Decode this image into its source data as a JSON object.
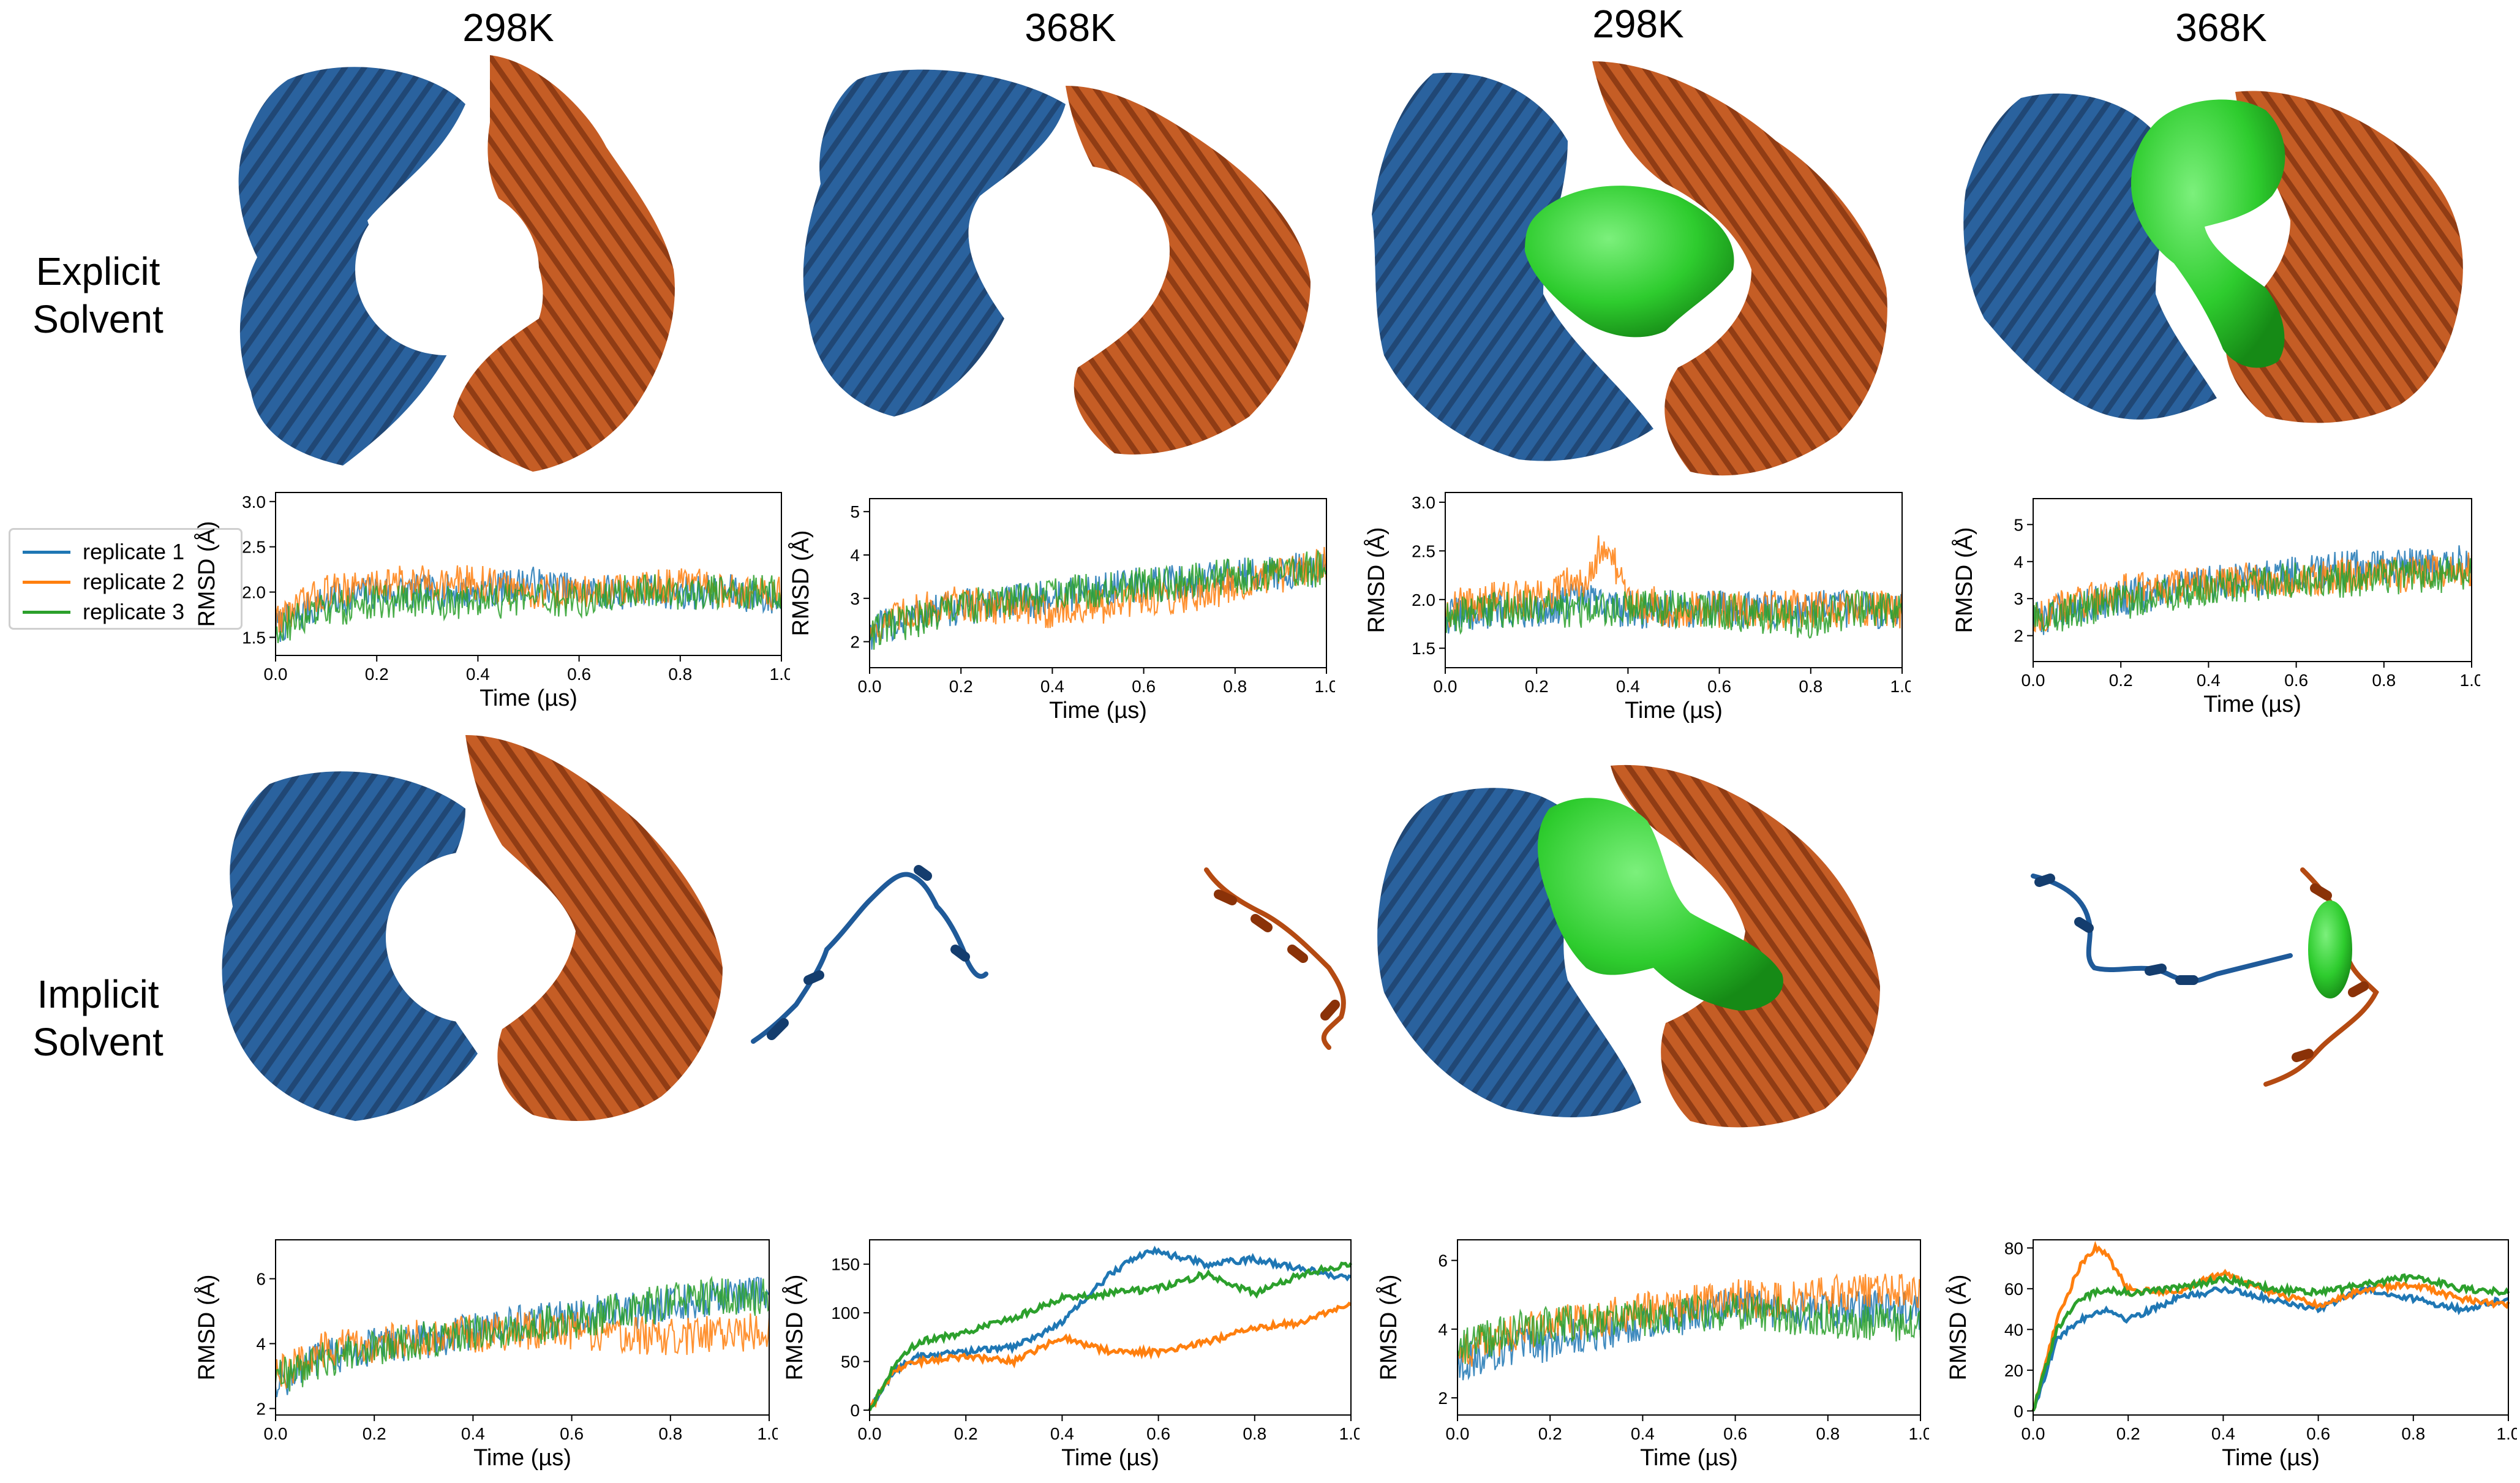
{
  "column_titles": [
    "298K",
    "368K",
    "298K",
    "368K"
  ],
  "row_labels": {
    "explicit": [
      "Explicit",
      "Solvent"
    ],
    "implicit": [
      "Implicit",
      "Solvent"
    ]
  },
  "colors": {
    "protein_chain_a": "#1f5a99",
    "protein_chain_b": "#b44a12",
    "ligand": "#2ecc2e",
    "replicate_1": "#1f77b4",
    "replicate_2": "#ff7f0e",
    "replicate_3": "#2ca02c"
  },
  "legend": [
    "replicate 1",
    "replicate 2",
    "replicate 3"
  ],
  "chart_data": [
    {
      "type": "line",
      "id": "explicit-298k-apo",
      "xlabel": "Time (µs)",
      "ylabel": "RMSD (Å)",
      "xlim": [
        0,
        1
      ],
      "ylim": [
        1.3,
        3.1
      ],
      "xticks": [
        "0.0",
        "0.2",
        "0.4",
        "0.6",
        "0.8",
        "1.0"
      ],
      "yticks": [
        "1.5",
        "2.0",
        "2.5",
        "3.0"
      ],
      "series": [
        {
          "name": "replicate 1",
          "x": [
            0,
            0.1,
            0.2,
            0.3,
            0.4,
            0.5,
            0.6,
            0.7,
            0.8,
            0.9,
            1.0
          ],
          "y": [
            1.6,
            1.9,
            2.0,
            2.0,
            2.0,
            2.1,
            2.0,
            2.0,
            2.0,
            2.0,
            1.9
          ]
        },
        {
          "name": "replicate 2",
          "x": [
            0,
            0.1,
            0.2,
            0.3,
            0.4,
            0.5,
            0.6,
            0.7,
            0.8,
            0.9,
            1.0
          ],
          "y": [
            1.7,
            2.0,
            2.1,
            2.1,
            2.1,
            2.0,
            2.0,
            2.0,
            2.1,
            2.0,
            2.0
          ]
        },
        {
          "name": "replicate 3",
          "x": [
            0,
            0.1,
            0.2,
            0.3,
            0.4,
            0.5,
            0.6,
            0.7,
            0.8,
            0.9,
            1.0
          ],
          "y": [
            1.6,
            1.8,
            1.9,
            1.9,
            1.9,
            1.9,
            1.9,
            2.0,
            2.0,
            2.0,
            2.0
          ]
        }
      ]
    },
    {
      "type": "line",
      "id": "explicit-368k-apo",
      "xlabel": "Time (µs)",
      "ylabel": "RMSD (Å)",
      "xlim": [
        0,
        1
      ],
      "ylim": [
        1.4,
        5.3
      ],
      "xticks": [
        "0.0",
        "0.2",
        "0.4",
        "0.6",
        "0.8",
        "1.0"
      ],
      "yticks": [
        "2",
        "3",
        "4",
        "5"
      ],
      "series": [
        {
          "name": "replicate 1",
          "x": [
            0,
            0.1,
            0.2,
            0.3,
            0.4,
            0.5,
            0.6,
            0.7,
            0.8,
            0.9,
            1.0
          ],
          "y": [
            2.2,
            2.6,
            2.8,
            2.9,
            3.0,
            3.2,
            3.3,
            3.4,
            3.5,
            3.6,
            3.7
          ]
        },
        {
          "name": "replicate 2",
          "x": [
            0,
            0.1,
            0.2,
            0.3,
            0.4,
            0.5,
            0.6,
            0.7,
            0.8,
            0.9,
            1.0
          ],
          "y": [
            2.3,
            2.7,
            2.9,
            2.8,
            2.7,
            2.8,
            3.0,
            3.1,
            3.3,
            3.5,
            3.8
          ]
        },
        {
          "name": "replicate 3",
          "x": [
            0,
            0.1,
            0.2,
            0.3,
            0.4,
            0.5,
            0.6,
            0.7,
            0.8,
            0.9,
            1.0
          ],
          "y": [
            2.2,
            2.5,
            2.8,
            2.9,
            3.1,
            3.2,
            3.3,
            3.4,
            3.5,
            3.6,
            3.7
          ]
        }
      ]
    },
    {
      "type": "line",
      "id": "explicit-298k-ligand",
      "xlabel": "Time (µs)",
      "ylabel": "RMSD (Å)",
      "xlim": [
        0,
        1
      ],
      "ylim": [
        1.3,
        3.1
      ],
      "xticks": [
        "0.0",
        "0.2",
        "0.4",
        "0.6",
        "0.8",
        "1.0"
      ],
      "yticks": [
        "1.5",
        "2.0",
        "2.5",
        "3.0"
      ],
      "series": [
        {
          "name": "replicate 1",
          "x": [
            0,
            0.1,
            0.2,
            0.3,
            0.4,
            0.5,
            0.6,
            0.7,
            0.8,
            0.9,
            1.0
          ],
          "y": [
            1.8,
            1.9,
            1.9,
            2.0,
            1.9,
            1.9,
            1.9,
            1.9,
            1.9,
            1.9,
            1.9
          ]
        },
        {
          "name": "replicate 2",
          "x": [
            0,
            0.1,
            0.2,
            0.3,
            0.35,
            0.4,
            0.5,
            0.6,
            0.7,
            0.8,
            0.9,
            1.0
          ],
          "y": [
            1.9,
            2.0,
            2.0,
            2.2,
            2.6,
            2.0,
            1.9,
            1.9,
            1.9,
            1.9,
            1.9,
            1.9
          ]
        },
        {
          "name": "replicate 3",
          "x": [
            0,
            0.1,
            0.2,
            0.3,
            0.4,
            0.5,
            0.6,
            0.7,
            0.8,
            0.9,
            1.0
          ],
          "y": [
            1.8,
            1.9,
            1.9,
            1.9,
            1.9,
            1.9,
            1.9,
            1.8,
            1.8,
            1.9,
            1.9
          ]
        }
      ]
    },
    {
      "type": "line",
      "id": "explicit-368k-ligand",
      "xlabel": "Time (µs)",
      "ylabel": "RMSD (Å)",
      "xlim": [
        0,
        1
      ],
      "ylim": [
        1.3,
        5.7
      ],
      "xticks": [
        "0.0",
        "0.2",
        "0.4",
        "0.6",
        "0.8",
        "1.0"
      ],
      "yticks": [
        "2",
        "3",
        "4",
        "5"
      ],
      "series": [
        {
          "name": "replicate 1",
          "x": [
            0,
            0.1,
            0.2,
            0.3,
            0.4,
            0.5,
            0.6,
            0.7,
            0.8,
            0.9,
            1.0
          ],
          "y": [
            2.4,
            2.8,
            3.0,
            3.2,
            3.4,
            3.5,
            3.7,
            3.8,
            3.9,
            3.9,
            4.0
          ]
        },
        {
          "name": "replicate 2",
          "x": [
            0,
            0.1,
            0.2,
            0.3,
            0.4,
            0.5,
            0.6,
            0.7,
            0.8,
            0.9,
            1.0
          ],
          "y": [
            2.5,
            2.9,
            3.2,
            3.3,
            3.4,
            3.5,
            3.5,
            3.6,
            3.6,
            3.7,
            3.8
          ]
        },
        {
          "name": "replicate 3",
          "x": [
            0,
            0.1,
            0.2,
            0.3,
            0.4,
            0.5,
            0.6,
            0.7,
            0.8,
            0.9,
            1.0
          ],
          "y": [
            2.4,
            2.7,
            2.9,
            3.1,
            3.3,
            3.4,
            3.5,
            3.5,
            3.6,
            3.6,
            3.7
          ]
        }
      ]
    },
    {
      "type": "line",
      "id": "implicit-298k-apo",
      "xlabel": "Time (µs)",
      "ylabel": "RMSD (Å)",
      "xlim": [
        0,
        1
      ],
      "ylim": [
        1.8,
        7.2
      ],
      "xticks": [
        "0.0",
        "0.2",
        "0.4",
        "0.6",
        "0.8",
        "1.0"
      ],
      "yticks": [
        "2",
        "4",
        "6"
      ],
      "series": [
        {
          "name": "replicate 1",
          "x": [
            0,
            0.1,
            0.2,
            0.3,
            0.4,
            0.5,
            0.6,
            0.7,
            0.8,
            0.9,
            1.0
          ],
          "y": [
            2.8,
            3.6,
            3.9,
            4.1,
            4.4,
            4.6,
            4.8,
            5.0,
            5.2,
            5.4,
            5.6
          ]
        },
        {
          "name": "replicate 2",
          "x": [
            0,
            0.1,
            0.2,
            0.3,
            0.4,
            0.5,
            0.6,
            0.7,
            0.8,
            0.9,
            1.0
          ],
          "y": [
            3.0,
            3.8,
            4.0,
            4.2,
            4.3,
            4.4,
            4.4,
            4.3,
            4.2,
            4.3,
            4.4
          ]
        },
        {
          "name": "replicate 3",
          "x": [
            0,
            0.1,
            0.2,
            0.3,
            0.4,
            0.5,
            0.6,
            0.7,
            0.8,
            0.9,
            1.0
          ],
          "y": [
            2.9,
            3.5,
            3.9,
            4.1,
            4.3,
            4.5,
            4.7,
            5.0,
            5.3,
            5.5,
            5.4
          ]
        }
      ]
    },
    {
      "type": "line",
      "id": "implicit-368k-apo",
      "xlabel": "Time (µs)",
      "ylabel": "RMSD (Å)",
      "xlim": [
        0,
        1
      ],
      "ylim": [
        -5,
        175
      ],
      "xticks": [
        "0.0",
        "0.2",
        "0.4",
        "0.6",
        "0.8",
        "1.0"
      ],
      "yticks": [
        "0",
        "50",
        "100",
        "150"
      ],
      "series": [
        {
          "name": "replicate 1",
          "x": [
            0,
            0.05,
            0.1,
            0.2,
            0.3,
            0.4,
            0.5,
            0.58,
            0.7,
            0.8,
            0.9,
            1.0
          ],
          "y": [
            0,
            40,
            55,
            60,
            65,
            90,
            140,
            165,
            150,
            155,
            145,
            135
          ]
        },
        {
          "name": "replicate 2",
          "x": [
            0,
            0.05,
            0.1,
            0.2,
            0.3,
            0.4,
            0.5,
            0.6,
            0.7,
            0.8,
            0.9,
            1.0
          ],
          "y": [
            0,
            40,
            50,
            55,
            50,
            75,
            60,
            60,
            70,
            85,
            90,
            110
          ]
        },
        {
          "name": "replicate 3",
          "x": [
            0,
            0.05,
            0.1,
            0.2,
            0.3,
            0.4,
            0.5,
            0.6,
            0.7,
            0.8,
            0.9,
            1.0
          ],
          "y": [
            0,
            45,
            70,
            80,
            95,
            115,
            120,
            125,
            140,
            120,
            140,
            150
          ]
        }
      ]
    },
    {
      "type": "line",
      "id": "implicit-298k-ligand",
      "xlabel": "Time (µs)",
      "ylabel": "RMSD (Å)",
      "xlim": [
        0,
        1
      ],
      "ylim": [
        1.5,
        6.6
      ],
      "xticks": [
        "0.0",
        "0.2",
        "0.4",
        "0.6",
        "0.8",
        "1.0"
      ],
      "yticks": [
        "2",
        "4",
        "6"
      ],
      "series": [
        {
          "name": "replicate 1",
          "x": [
            0,
            0.1,
            0.2,
            0.3,
            0.4,
            0.5,
            0.6,
            0.7,
            0.8,
            0.9,
            1.0
          ],
          "y": [
            3.0,
            3.4,
            3.6,
            3.9,
            4.2,
            4.4,
            4.7,
            4.5,
            4.5,
            4.6,
            4.5
          ]
        },
        {
          "name": "replicate 2",
          "x": [
            0,
            0.1,
            0.2,
            0.3,
            0.4,
            0.5,
            0.6,
            0.7,
            0.8,
            0.9,
            1.0
          ],
          "y": [
            3.3,
            3.8,
            4.1,
            4.3,
            4.5,
            4.7,
            4.9,
            4.8,
            5.0,
            5.2,
            5.0
          ]
        },
        {
          "name": "replicate 3",
          "x": [
            0,
            0.1,
            0.2,
            0.3,
            0.4,
            0.5,
            0.6,
            0.7,
            0.8,
            0.9,
            1.0
          ],
          "y": [
            3.4,
            3.9,
            4.1,
            4.2,
            4.3,
            4.4,
            4.5,
            4.4,
            4.3,
            4.2,
            4.2
          ]
        }
      ]
    },
    {
      "type": "line",
      "id": "implicit-368k-ligand",
      "xlabel": "Time (µs)",
      "ylabel": "RMSD (Å)",
      "xlim": [
        0,
        1
      ],
      "ylim": [
        -2,
        84
      ],
      "xticks": [
        "0.0",
        "0.2",
        "0.4",
        "0.6",
        "0.8",
        "1.0"
      ],
      "yticks": [
        "0",
        "20",
        "40",
        "60",
        "80"
      ],
      "series": [
        {
          "name": "replicate 1",
          "x": [
            0,
            0.05,
            0.1,
            0.15,
            0.2,
            0.3,
            0.4,
            0.5,
            0.6,
            0.7,
            0.8,
            0.9,
            1.0
          ],
          "y": [
            0,
            35,
            45,
            50,
            45,
            55,
            60,
            55,
            50,
            60,
            55,
            50,
            55
          ]
        },
        {
          "name": "replicate 2",
          "x": [
            0,
            0.05,
            0.1,
            0.13,
            0.15,
            0.2,
            0.3,
            0.4,
            0.5,
            0.6,
            0.7,
            0.8,
            0.9,
            1.0
          ],
          "y": [
            0,
            45,
            72,
            80,
            78,
            60,
            58,
            68,
            58,
            52,
            60,
            62,
            55,
            52
          ]
        },
        {
          "name": "replicate 3",
          "x": [
            0,
            0.05,
            0.1,
            0.15,
            0.2,
            0.3,
            0.4,
            0.5,
            0.6,
            0.7,
            0.8,
            0.9,
            1.0
          ],
          "y": [
            0,
            40,
            55,
            60,
            58,
            60,
            65,
            60,
            58,
            62,
            66,
            60,
            58
          ]
        }
      ]
    }
  ]
}
